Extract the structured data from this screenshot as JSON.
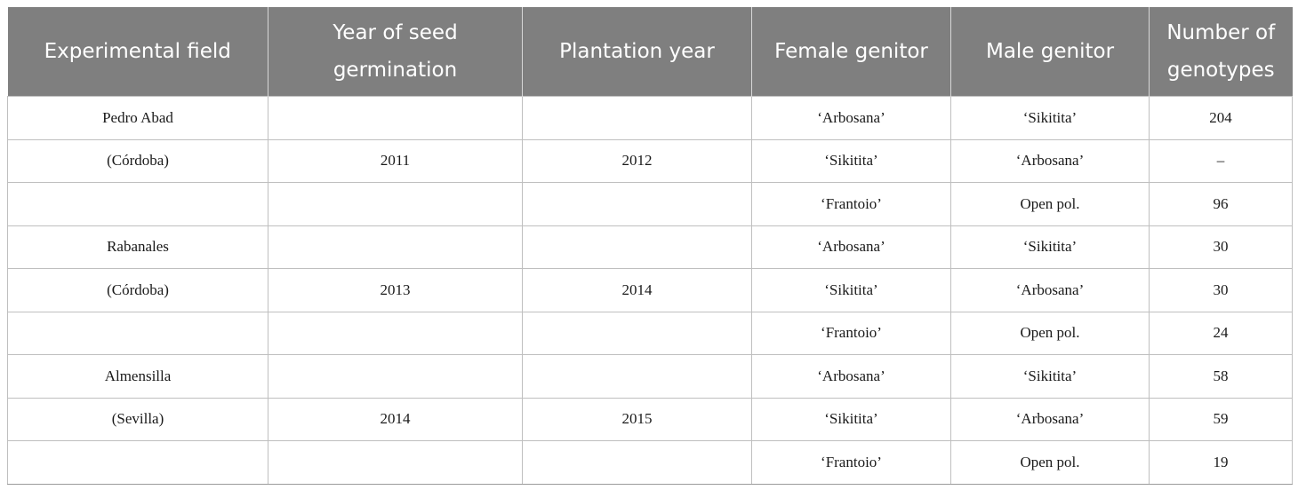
{
  "headers": [
    "Experimental field",
    "Year of seed germination",
    "Plantation year",
    "Female genitor",
    "Male genitor",
    "Number of genotypes"
  ],
  "rows": [
    [
      "Pedro Abad",
      "",
      "",
      "‘Arbosana’",
      "‘Sikitita’",
      "204"
    ],
    [
      "(Córdoba)",
      "2011",
      "2012",
      "‘Sikitita’",
      "‘Arbosana’",
      "–"
    ],
    [
      "",
      "",
      "",
      "‘Frantoio’",
      "Open pol.",
      "96"
    ],
    [
      "Rabanales",
      "",
      "",
      "‘Arbosana’",
      "‘Sikitita’",
      "30"
    ],
    [
      "(Córdoba)",
      "2013",
      "2014",
      "‘Sikitita’",
      "‘Arbosana’",
      "30"
    ],
    [
      "",
      "",
      "",
      "‘Frantoio’",
      "Open pol.",
      "24"
    ],
    [
      "Almensilla",
      "",
      "",
      "‘Arbosana’",
      "‘Sikitita’",
      "58"
    ],
    [
      "(Sevilla)",
      "2014",
      "2015",
      "‘Sikitita’",
      "‘Arbosana’",
      "59"
    ],
    [
      "",
      "",
      "",
      "‘Frantoio’",
      "Open pol.",
      "19"
    ]
  ]
}
